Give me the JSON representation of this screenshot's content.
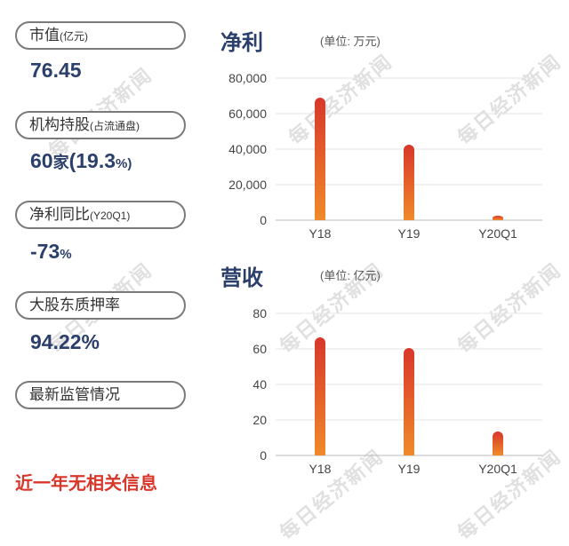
{
  "left_panel": {
    "market_cap": {
      "label": "市值",
      "label_small": "(亿元)",
      "value": "76.45"
    },
    "institutions": {
      "label": "机构持股",
      "label_small": "(占流通盘)",
      "value_num": "60",
      "value_unit": "家",
      "value_pct": "(19.3",
      "value_pct_sign": "%)"
    },
    "net_profit_yoy": {
      "label": "净利同比",
      "label_small": "(Y20Q1)",
      "value_num": "-73",
      "value_unit": "%"
    },
    "pledge_ratio": {
      "label": "大股东质押率",
      "value": "94.22%"
    },
    "supervision": {
      "label": "最新监管情况"
    },
    "footer": "近一年无相关信息"
  },
  "watermark": "每日经济新闻",
  "colors": {
    "accent": "#2b3f6b",
    "bar_top": "#d8372b",
    "bar_bottom": "#f08a2a",
    "footer_red": "#d8372b"
  },
  "chart_data": [
    {
      "type": "bar",
      "title": "净利",
      "unit": "(单位: 万元)",
      "categories": [
        "Y18",
        "Y19",
        "Y20Q1"
      ],
      "values": [
        69000,
        42500,
        2500
      ],
      "ylim": [
        0,
        80000
      ],
      "yticks": [
        0,
        20000,
        40000,
        60000,
        80000
      ],
      "ytick_labels": [
        "0",
        "20,000",
        "40,000",
        "60,000",
        "80,000"
      ],
      "grid": true
    },
    {
      "type": "bar",
      "title": "营收",
      "unit": "(单位: 亿元)",
      "categories": [
        "Y18",
        "Y19",
        "Y20Q1"
      ],
      "values": [
        66.5,
        60.5,
        13.5
      ],
      "ylim": [
        0,
        80
      ],
      "yticks": [
        0,
        20,
        40,
        60,
        80
      ],
      "ytick_labels": [
        "0",
        "20",
        "40",
        "60",
        "80"
      ],
      "grid": true
    }
  ]
}
